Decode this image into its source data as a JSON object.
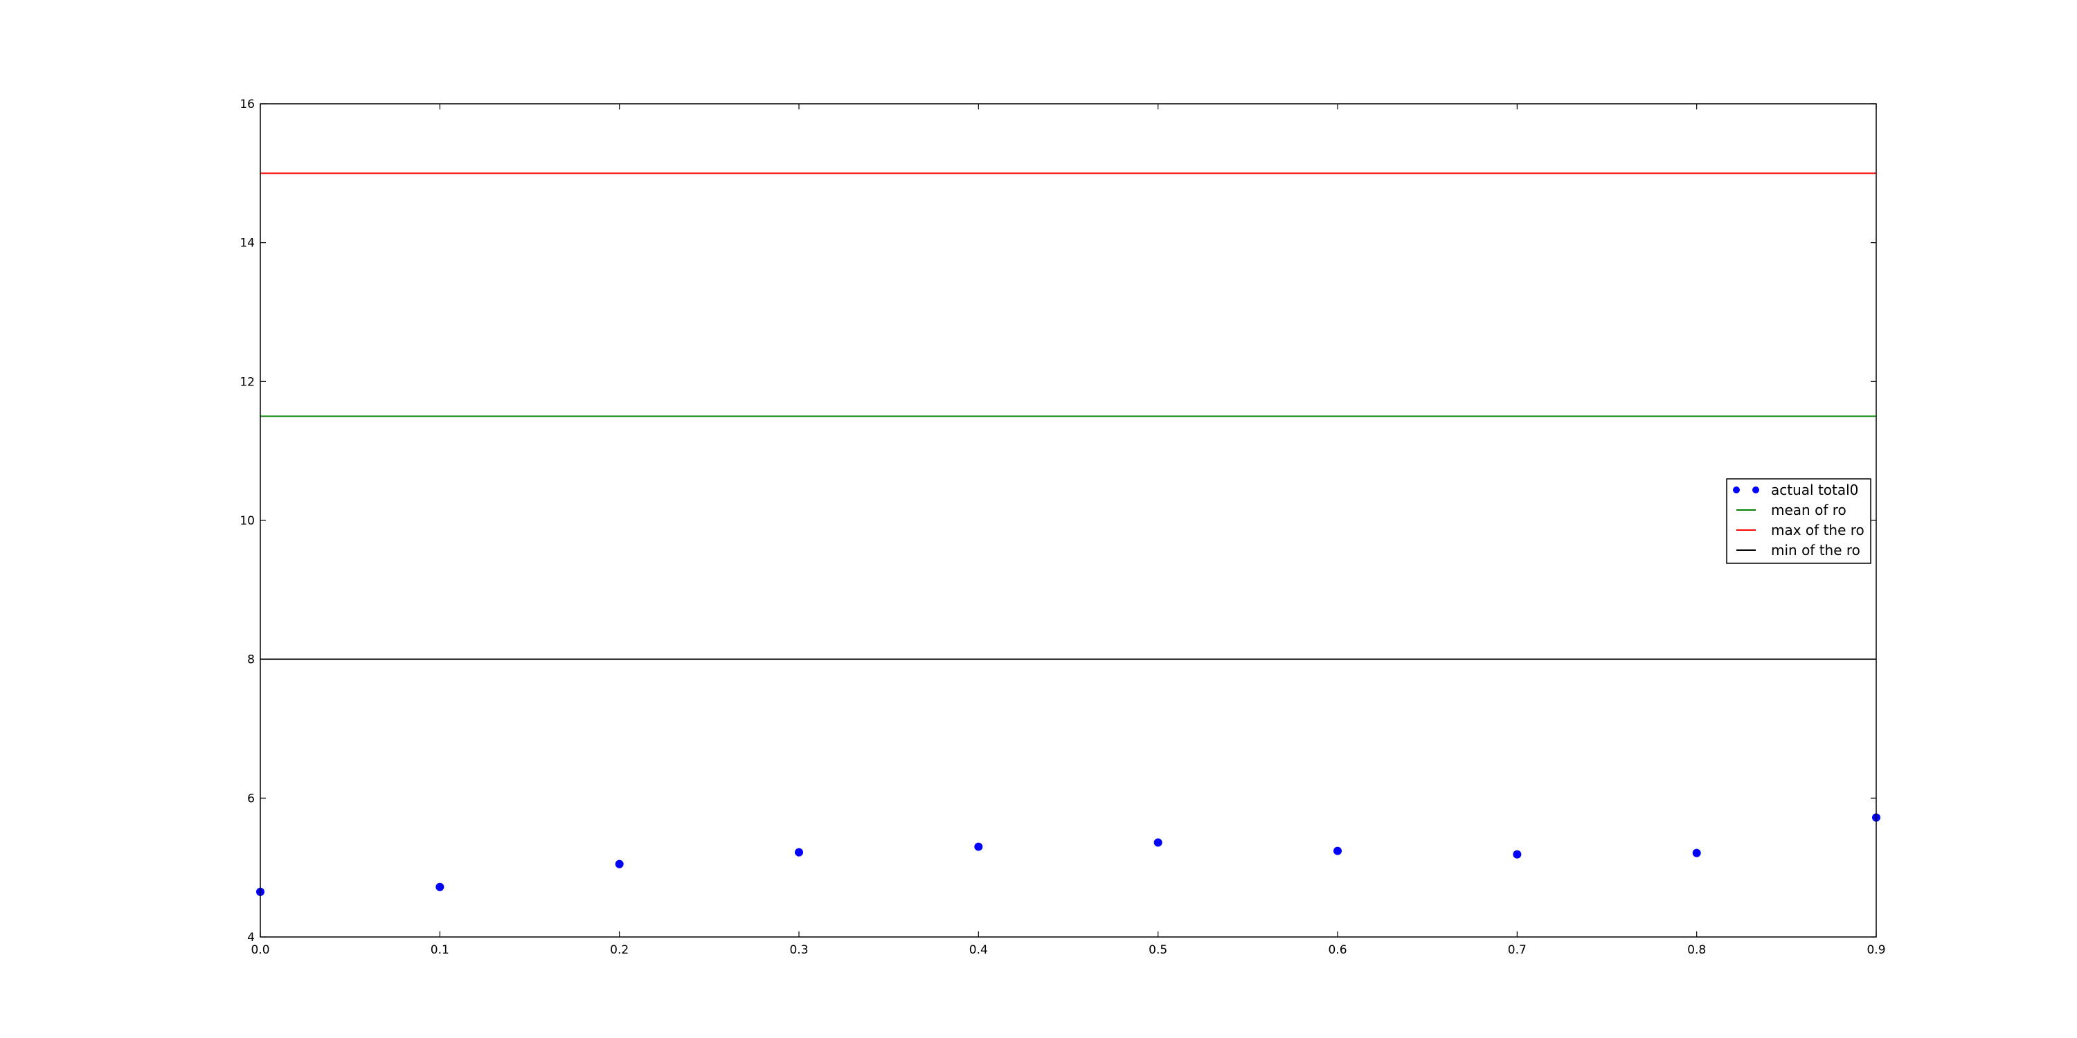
{
  "chart_data": {
    "type": "scatter",
    "title": "",
    "xlabel": "",
    "ylabel": "",
    "xlim": [
      0.0,
      0.9
    ],
    "ylim": [
      4,
      16
    ],
    "x_ticks": [
      "0.0",
      "0.1",
      "0.2",
      "0.3",
      "0.4",
      "0.5",
      "0.6",
      "0.7",
      "0.8",
      "0.9"
    ],
    "y_ticks": [
      "4",
      "6",
      "8",
      "10",
      "12",
      "14",
      "16"
    ],
    "grid": false,
    "legend_position": "center-right",
    "series": [
      {
        "name": "actual total0",
        "kind": "points",
        "color": "#0000ff",
        "x": [
          0.0,
          0.1,
          0.2,
          0.3,
          0.4,
          0.5,
          0.6,
          0.7,
          0.8,
          0.9
        ],
        "y": [
          4.65,
          4.72,
          5.05,
          5.22,
          5.3,
          5.36,
          5.24,
          5.19,
          5.21,
          5.72
        ]
      },
      {
        "name": "mean of ro",
        "kind": "hline",
        "color": "#008000",
        "y": 11.5
      },
      {
        "name": "max of the ro",
        "kind": "hline",
        "color": "#ff0000",
        "y": 15.0
      },
      {
        "name": "min of the ro",
        "kind": "hline",
        "color": "#000000",
        "y": 8.0
      }
    ]
  }
}
